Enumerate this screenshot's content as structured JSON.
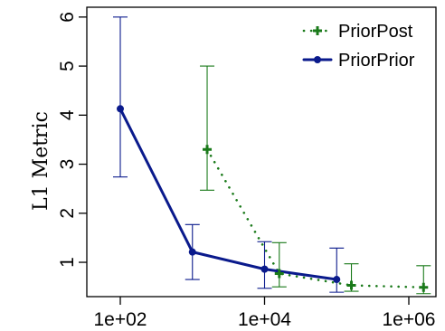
{
  "chart_data": {
    "type": "line",
    "xscale": "log",
    "xlim": [
      100,
      1000000
    ],
    "ylim": [
      0.3,
      6.2
    ],
    "xticks": [
      100,
      10000,
      1000000
    ],
    "xtick_labels": [
      "1e+02",
      "1e+04",
      "1e+06"
    ],
    "yticks": [
      1,
      2,
      3,
      4,
      5,
      6
    ],
    "ytick_labels": [
      "1",
      "2",
      "3",
      "4",
      "5",
      "6"
    ],
    "xlabel": "",
    "ylabel": "L1 Metric",
    "legend": {
      "position": "top-right"
    },
    "grid": false,
    "series": [
      {
        "name": "PriorPost",
        "color": "#1a7a1a",
        "line_style": "dotted",
        "marker": "plus",
        "points": [
          {
            "x": 1600,
            "y": 3.3,
            "lo": 2.47,
            "hi": 5.0
          },
          {
            "x": 16000,
            "y": 0.77,
            "lo": 0.5,
            "hi": 1.4
          },
          {
            "x": 160000,
            "y": 0.53,
            "lo": 0.41,
            "hi": 0.97
          },
          {
            "x": 1600000,
            "y": 0.49,
            "lo": 0.36,
            "hi": 0.93
          }
        ]
      },
      {
        "name": "PriorPrior",
        "color": "#0a1a8c",
        "line_style": "solid",
        "marker": "circle",
        "points": [
          {
            "x": 100,
            "y": 4.13,
            "lo": 2.74,
            "hi": 6.0
          },
          {
            "x": 1000,
            "y": 1.21,
            "lo": 0.65,
            "hi": 1.77
          },
          {
            "x": 10000,
            "y": 0.86,
            "lo": 0.47,
            "hi": 1.42
          },
          {
            "x": 100000,
            "y": 0.65,
            "lo": 0.39,
            "hi": 1.29
          }
        ]
      }
    ]
  }
}
